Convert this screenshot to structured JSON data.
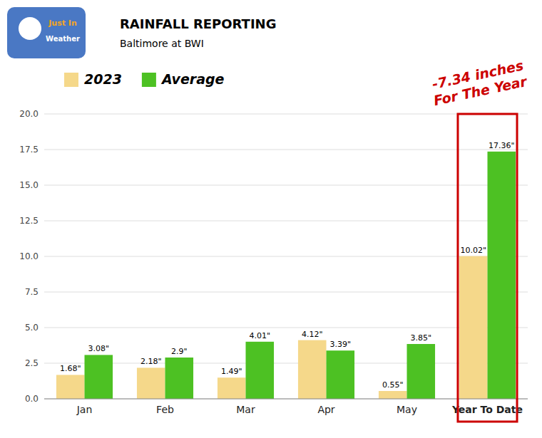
{
  "chart_data": {
    "type": "bar",
    "title": "RAINFALL REPORTING",
    "subtitle": "Baltimore at BWI",
    "categories": [
      "Jan",
      "Feb",
      "Mar",
      "Apr",
      "May",
      "Year To Date"
    ],
    "series": [
      {
        "name": "2023",
        "color": "#F5D88A",
        "values": [
          1.68,
          2.18,
          1.49,
          4.12,
          0.55,
          10.02
        ],
        "value_labels": [
          "1.68\"",
          "2.18\"",
          "1.49\"",
          "4.12\"",
          "0.55\"",
          "10.02\""
        ]
      },
      {
        "name": "Average",
        "color": "#4DC123",
        "values": [
          3.08,
          2.9,
          4.01,
          3.39,
          3.85,
          17.36
        ],
        "value_labels": [
          "3.08\"",
          "2.9\"",
          "4.01\"",
          "3.39\"",
          "3.85\"",
          "17.36\""
        ]
      }
    ],
    "ylim": [
      0,
      20
    ],
    "yticks": [
      {
        "value": 0,
        "label": "0.0"
      },
      2.5,
      {
        "value": 5,
        "label": "5.0"
      },
      7.5,
      {
        "value": 10,
        "label": "10.0"
      },
      12.5,
      {
        "value": 15,
        "label": "15.0"
      },
      17.5,
      {
        "value": 20,
        "label": "20.0"
      }
    ],
    "grid": true,
    "legend": "top",
    "data_labels": true,
    "annotations": [
      {
        "text": "-7.34 inches\nFor The Year",
        "color": "#CC0000"
      },
      {
        "text": "Just In"
      },
      {
        "text": "Weather"
      }
    ]
  }
}
